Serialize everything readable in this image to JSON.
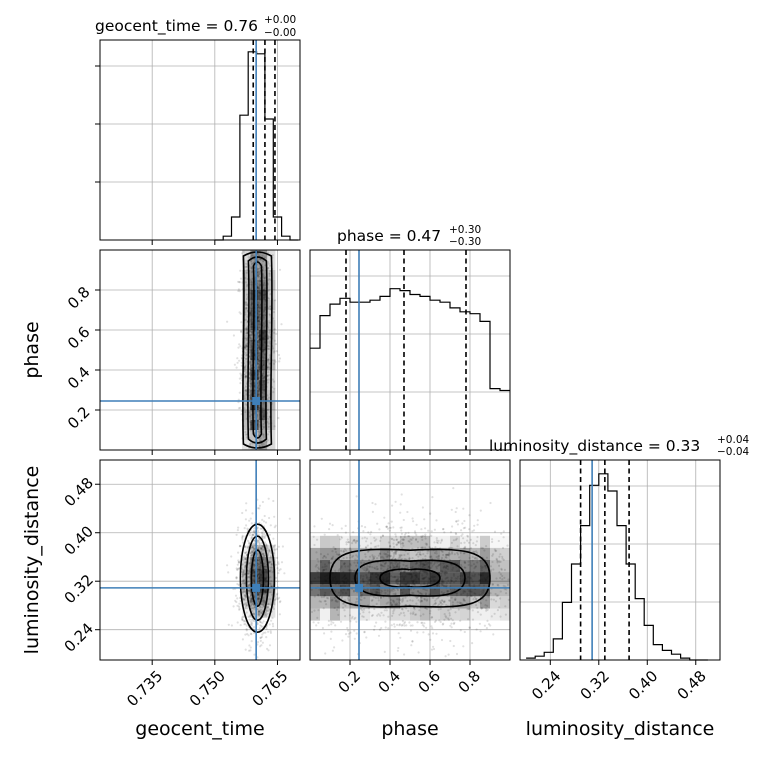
{
  "chart_data": {
    "type": "corner",
    "parameters": [
      "geocent_time",
      "phase",
      "luminosity_distance"
    ],
    "axis_labels": {
      "x": [
        "geocent_time",
        "phase",
        "luminosity_distance"
      ],
      "y": [
        "phase",
        "luminosity_distance"
      ]
    },
    "ranges": {
      "geocent_time": [
        0.7225,
        0.7704
      ],
      "phase": [
        0.0,
        1.0
      ],
      "luminosity_distance": [
        0.19,
        0.52
      ]
    },
    "ticks": {
      "geocent_time": [
        "0.735",
        "0.750",
        "0.765"
      ],
      "phase": [
        "0.2",
        "0.4",
        "0.6",
        "0.8"
      ],
      "luminosity_distance": [
        "0.24",
        "0.32",
        "0.40",
        "0.48"
      ]
    },
    "truths": {
      "geocent_time": 0.7599,
      "phase": 0.245,
      "luminosity_distance": 0.309
    },
    "titles": [
      {
        "param": "geocent_time",
        "median": "0.76",
        "plus": "+0.00",
        "minus": "−0.00"
      },
      {
        "param": "phase",
        "median": "0.47",
        "plus": "+0.30",
        "minus": "−0.30"
      },
      {
        "param": "luminosity_distance",
        "median": "0.33",
        "plus": "+0.04",
        "minus": "−0.04"
      }
    ],
    "quantiles": {
      "geocent_time": [
        0.7592,
        0.762,
        0.7644
      ],
      "phase": [
        0.18,
        0.47,
        0.78
      ],
      "luminosity_distance": [
        0.29,
        0.33,
        0.37
      ]
    },
    "histograms": {
      "geocent_time": {
        "edges": [
          0.75,
          0.752,
          0.754,
          0.756,
          0.758,
          0.76,
          0.762,
          0.764,
          0.766,
          0.768,
          0.77
        ],
        "values": [
          0,
          0.02,
          0.12,
          0.65,
          0.98,
          0.97,
          0.63,
          0.12,
          0.02,
          0
        ]
      },
      "phase": {
        "edges": [
          0.0,
          0.05,
          0.1,
          0.15,
          0.2,
          0.25,
          0.3,
          0.35,
          0.4,
          0.45,
          0.5,
          0.55,
          0.6,
          0.65,
          0.7,
          0.75,
          0.8,
          0.85,
          0.9,
          0.95,
          1.0
        ],
        "values": [
          0.53,
          0.7,
          0.76,
          0.79,
          0.77,
          0.77,
          0.78,
          0.8,
          0.84,
          0.83,
          0.81,
          0.8,
          0.78,
          0.77,
          0.74,
          0.72,
          0.71,
          0.67,
          0.32,
          0.31
        ]
      },
      "luminosity_distance": {
        "edges": [
          0.2,
          0.215,
          0.23,
          0.245,
          0.26,
          0.275,
          0.29,
          0.305,
          0.32,
          0.335,
          0.35,
          0.365,
          0.38,
          0.395,
          0.41,
          0.425,
          0.44,
          0.455,
          0.47,
          0.485,
          0.5
        ],
        "values": [
          0.01,
          0.02,
          0.04,
          0.11,
          0.3,
          0.5,
          0.7,
          0.91,
          0.97,
          0.88,
          0.7,
          0.5,
          0.32,
          0.18,
          0.08,
          0.05,
          0.03,
          0.01,
          0,
          0
        ]
      }
    }
  }
}
